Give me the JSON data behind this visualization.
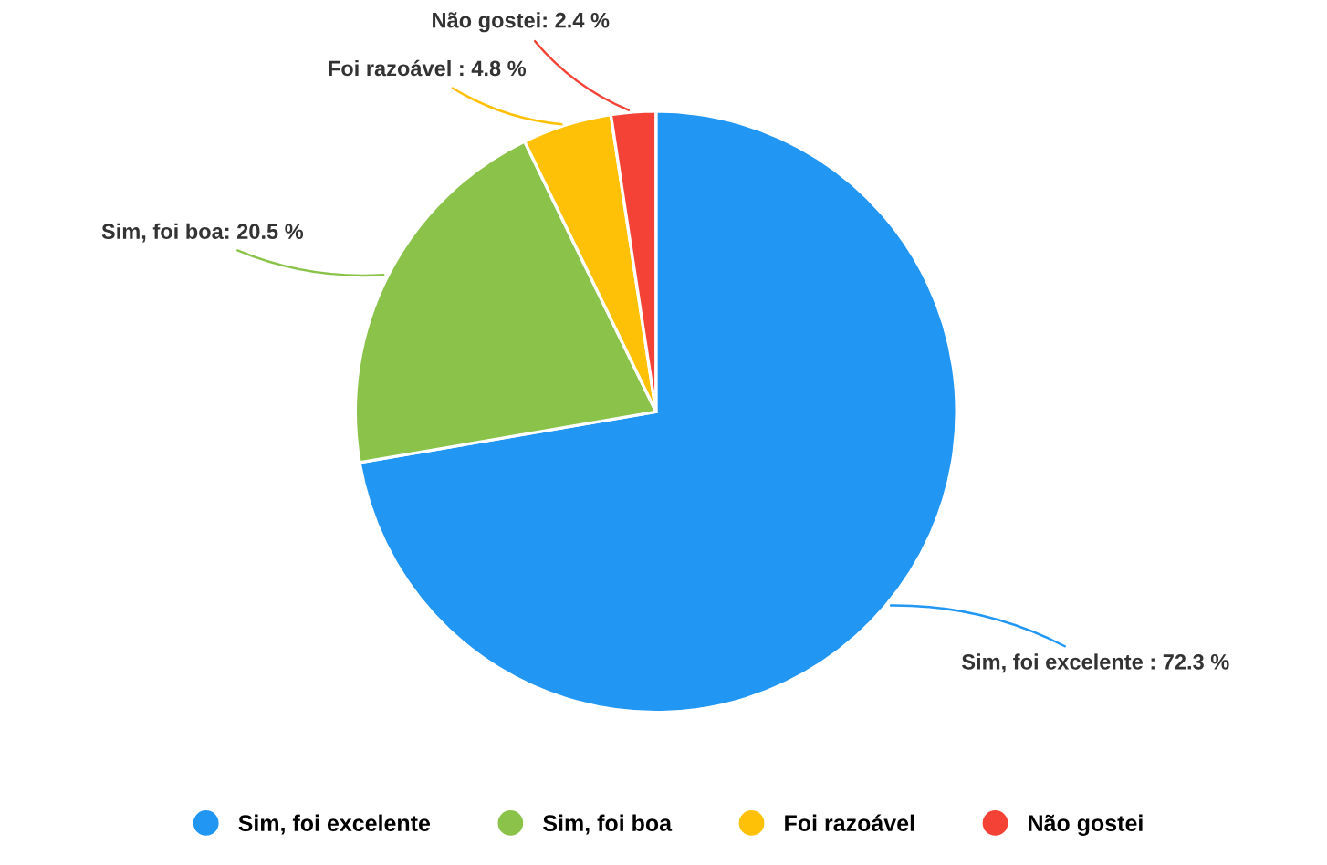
{
  "chart_data": {
    "type": "pie",
    "categories": [
      "Sim, foi excelente",
      "Sim, foi boa",
      "Foi razoável",
      "Não gostei"
    ],
    "values": [
      72.3,
      20.5,
      4.8,
      2.4
    ],
    "colors": [
      "#2196f3",
      "#8bc34a",
      "#ffc107",
      "#f44336"
    ],
    "value_labels": [
      "Sim, foi excelente : 72.3 %",
      "Sim, foi boa: 20.5 %",
      "Foi razoável : 4.8 %",
      "Não gostei: 2.4 %"
    ],
    "legend": "bottom"
  }
}
